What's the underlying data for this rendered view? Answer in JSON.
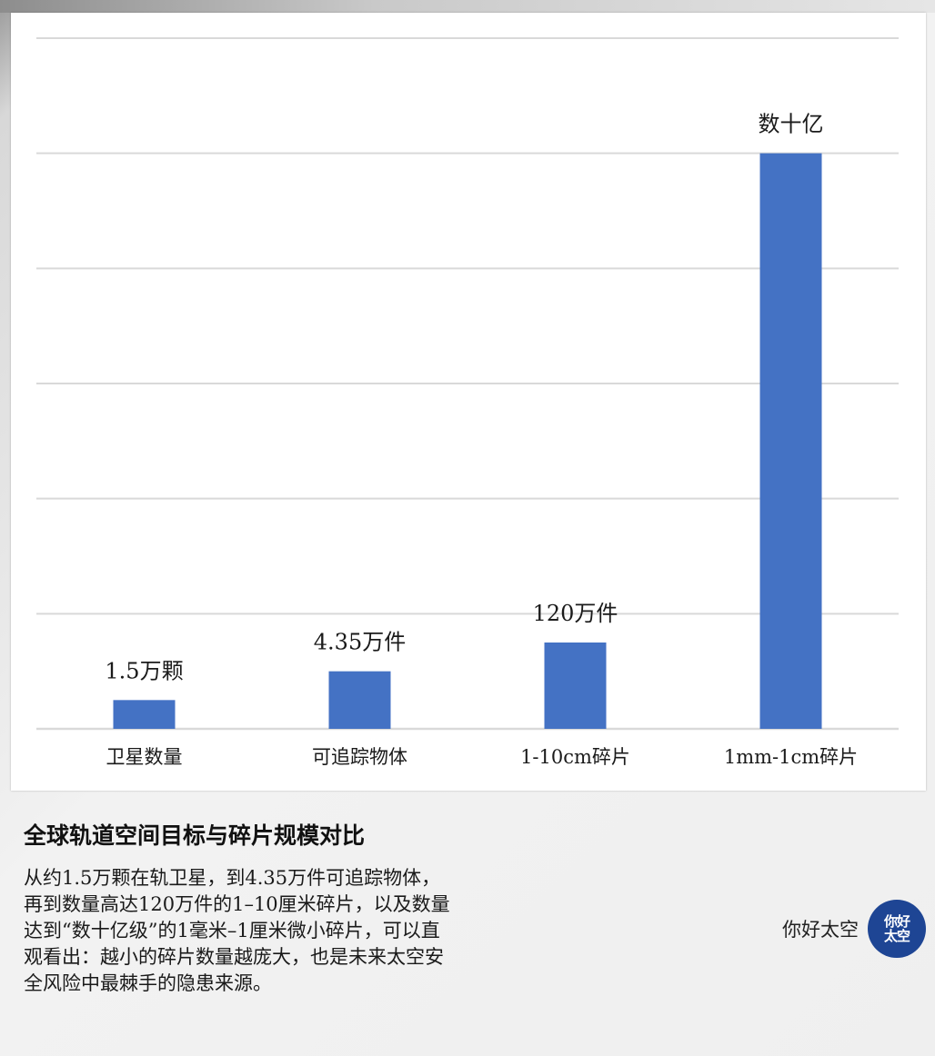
{
  "chart_data": {
    "type": "bar",
    "categories": [
      "卫星数量",
      "可追踪物体",
      "1-10cm碎片",
      "1mm-1cm碎片"
    ],
    "values": [
      1,
      2,
      3,
      20
    ],
    "value_labels": [
      "1.5万颗",
      "4.35万件",
      "120万件",
      "数十亿"
    ],
    "ylim": [
      0,
      24
    ],
    "grid": true,
    "legend": "none",
    "bar_color": "#4472c4"
  },
  "caption": {
    "title": "全球轨道空间目标与碎片规模对比",
    "body": "从约1.5万颗在轨卫星，到4.35万件可追踪物体，再到数量高达120万件的1–10厘米碎片，以及数量达到“数十亿级”的1毫米–1厘米微小碎片，可以直观看出：越小的碎片数量越庞大，也是未来太空安全风险中最棘手的隐患来源。"
  },
  "brand": {
    "name": "你好太空",
    "logo_line1": "你好",
    "logo_line2": "太空",
    "logo_color": "#1e4594"
  }
}
